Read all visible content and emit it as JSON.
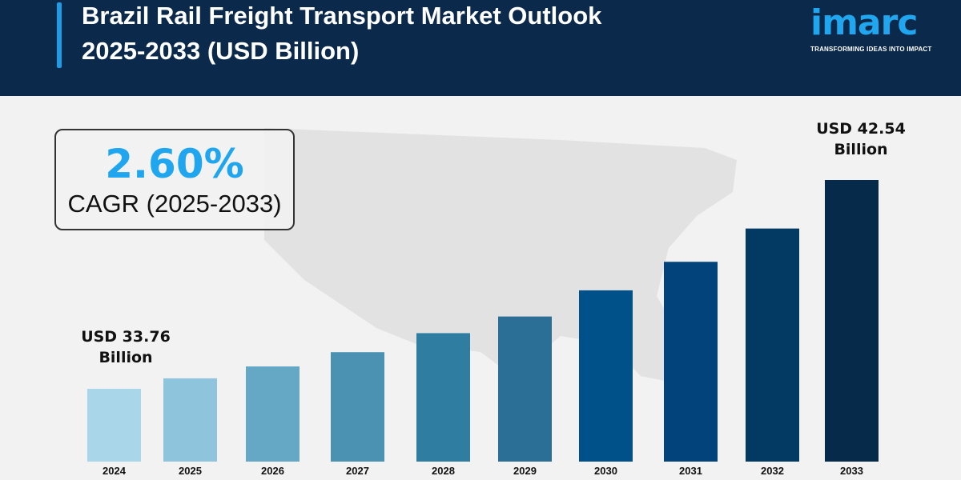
{
  "header": {
    "title_line1": "Brazil Rail Freight Transport Market Outlook",
    "title_line2": "2025-2033 (USD Billion)"
  },
  "logo": {
    "word": "imarc",
    "tagline": "TRANSFORMING IDEAS INTO IMPACT"
  },
  "cagr": {
    "value": "2.60%",
    "label": "CAGR (2025-2033)"
  },
  "annotations": {
    "start_line1": "USD 33.76",
    "start_line2": "Billion",
    "end_line1": "USD 42.54",
    "end_line2": "Billion"
  },
  "colors": {
    "header_bg": "#0b2a4b",
    "accent": "#1fa6ee",
    "background": "#f2f2f2",
    "map": "#e2e2e2"
  },
  "chart_data": {
    "type": "bar",
    "title": "Brazil Rail Freight Transport Market Outlook 2025-2033 (USD Billion)",
    "categories": [
      "2024",
      "2025",
      "2026",
      "2027",
      "2028",
      "2029",
      "2030",
      "2031",
      "2032",
      "2033"
    ],
    "values": [
      33.76,
      34.2,
      34.7,
      35.3,
      36.1,
      36.8,
      37.9,
      39.1,
      40.5,
      42.54
    ],
    "bar_colors": [
      "#a9d6e8",
      "#8ec4dc",
      "#65a8c6",
      "#4a91b2",
      "#2f7ea2",
      "#2b6f96",
      "#005089",
      "#02437c",
      "#033a64",
      "#062a4a"
    ],
    "unit": "USD Billion",
    "grid": false,
    "legend": "none"
  }
}
